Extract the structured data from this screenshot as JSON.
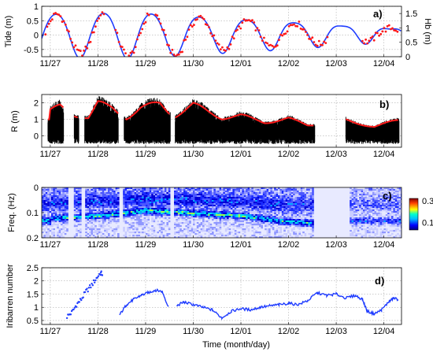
{
  "chart_data": [
    {
      "panel_label": "a)",
      "type": "line",
      "ylabel": "Tide (m)",
      "ylabel_right": "Hb (m)",
      "xticks": [
        "11/27",
        "11/28",
        "11/29",
        "11/30",
        "12/01",
        "12/02",
        "12/03",
        "12/04"
      ],
      "ylim": [
        -0.75,
        1.0
      ],
      "yticks": [
        "-0.5",
        "0",
        "0.5",
        "1"
      ],
      "ylim_right": [
        0,
        1.75
      ],
      "yticks_right": [
        "0",
        "0.5",
        "1",
        "1.5"
      ],
      "grid": true,
      "series": [
        {
          "color": "#1f3cff",
          "axis": "left",
          "style": "line",
          "amplitude": [
            0.78,
            0.82,
            0.84,
            0.72,
            0.62,
            0.52,
            0.4,
            0.28,
            0.2
          ],
          "mean": 0.05
        },
        {
          "color": "#ff1a1a",
          "axis": "right",
          "style": "dots",
          "amplitude": [
            0.75,
            0.85,
            0.85,
            0.62,
            0.5,
            0.4,
            0,
            0.22,
            0.2
          ],
          "mean": 0.05
        }
      ]
    },
    {
      "panel_label": "b)",
      "type": "line",
      "ylabel": "R (m)",
      "xticks": [
        "11/27",
        "11/28",
        "11/29",
        "11/30",
        "12/01",
        "12/02",
        "12/03",
        "12/04"
      ],
      "ylim": [
        -0.7,
        2.5
      ],
      "yticks": [
        "0",
        "1",
        "2"
      ],
      "grid": true,
      "envelope_top": [
        [
          0.0,
          1.6
        ],
        [
          0.2,
          1.9
        ],
        [
          0.5,
          1.4
        ],
        [
          0.8,
          1.2
        ],
        [
          1.0,
          2.1
        ],
        [
          1.3,
          1.8
        ],
        [
          1.6,
          1.2
        ],
        [
          1.9,
          1.8
        ],
        [
          2.3,
          2.1
        ],
        [
          2.6,
          1.3
        ],
        [
          3.0,
          2.0
        ],
        [
          3.3,
          1.6
        ],
        [
          3.6,
          1.2
        ],
        [
          4.0,
          1.3
        ],
        [
          4.5,
          0.9
        ],
        [
          5.0,
          1.1
        ],
        [
          5.4,
          0.7
        ],
        [
          6.2,
          1.0
        ],
        [
          6.8,
          0.6
        ],
        [
          7.3,
          1.0
        ]
      ],
      "envelope_bottom": -0.5,
      "gaps": [
        [
          0.28,
          0.5
        ],
        [
          0.6,
          0.72
        ],
        [
          1.43,
          1.55
        ],
        [
          2.52,
          2.62
        ],
        [
          5.55,
          6.2
        ]
      ]
    },
    {
      "panel_label": "c)",
      "type": "heatmap",
      "ylabel": "Freq. (Hz)",
      "xticks": [
        "11/27",
        "11/28",
        "11/29",
        "11/30",
        "12/01",
        "12/02",
        "12/03",
        "12/04"
      ],
      "ylim": [
        0.2,
        0
      ],
      "yticks": [
        "0",
        "0.1",
        "0.2"
      ],
      "colorbar_ticks": [
        "0.1",
        "0.3"
      ],
      "colorbar_range": [
        0.03,
        0.32
      ],
      "peak_band_freq": [
        [
          0.0,
          0.12
        ],
        [
          1.0,
          0.11
        ],
        [
          2.0,
          0.09
        ],
        [
          3.0,
          0.1
        ],
        [
          4.0,
          0.11
        ],
        [
          4.8,
          0.13
        ],
        [
          5.5,
          0.14
        ],
        [
          6.5,
          0.13
        ],
        [
          7.3,
          0.13
        ]
      ]
    },
    {
      "panel_label": "d)",
      "type": "line",
      "xlabel": "Time (month/day)",
      "ylabel": "Iribarren number",
      "xticks": [
        "11/27",
        "11/28",
        "11/29",
        "11/30",
        "12/01",
        "12/02",
        "12/03",
        "12/04"
      ],
      "ylim": [
        0.35,
        2.5
      ],
      "yticks": [
        "0.5",
        "1",
        "1.5",
        "2",
        "2.5"
      ],
      "grid": true,
      "series": [
        {
          "color": "#1f3cff",
          "style": "dots",
          "x": [
            0.35,
            0.45,
            0.55,
            0.65,
            0.75,
            0.85,
            0.95,
            1.05,
            1.1
          ],
          "y": [
            0.65,
            0.8,
            1.1,
            1.3,
            1.6,
            1.8,
            2.05,
            2.3,
            2.25
          ]
        },
        {
          "color": "#1f3cff",
          "style": "line",
          "x": [
            1.45,
            1.6,
            1.75,
            1.9,
            2.05,
            2.2,
            2.35,
            2.48
          ],
          "y": [
            0.7,
            1.1,
            1.3,
            1.45,
            1.55,
            1.65,
            1.6,
            1.0
          ]
        },
        {
          "color": "#1f3cff",
          "style": "line",
          "x": [
            2.65,
            2.8,
            3.0,
            3.2,
            3.4,
            3.6,
            3.8,
            4.0,
            4.2,
            4.4,
            4.6,
            4.8,
            5.0,
            5.2,
            5.4,
            5.6,
            5.8,
            6.0,
            6.2,
            6.4,
            6.55,
            6.65,
            6.8,
            6.95,
            7.1,
            7.2,
            7.3
          ],
          "y": [
            1.05,
            1.2,
            1.1,
            1.0,
            0.9,
            0.6,
            0.85,
            0.95,
            0.9,
            1.0,
            1.05,
            1.1,
            1.15,
            1.1,
            1.25,
            1.55,
            1.45,
            1.5,
            1.35,
            1.45,
            1.3,
            0.85,
            0.75,
            0.9,
            1.2,
            1.35,
            1.3
          ]
        }
      ]
    }
  ]
}
